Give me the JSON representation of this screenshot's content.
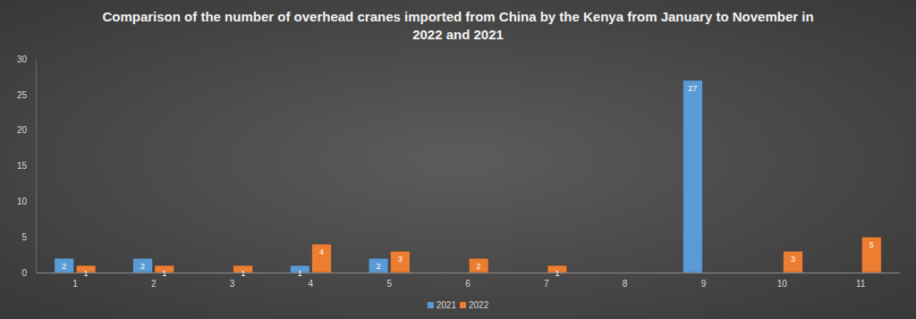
{
  "chart_data": {
    "type": "bar",
    "title": "Comparison of the number of overhead cranes imported from China by the Kenya from January to November in 2022 and 2021",
    "categories": [
      "1",
      "2",
      "3",
      "4",
      "5",
      "6",
      "7",
      "8",
      "9",
      "10",
      "11"
    ],
    "series": [
      {
        "name": "2021",
        "color": "#5b9bd5",
        "values": [
          2,
          2,
          null,
          1,
          2,
          null,
          null,
          null,
          27,
          null,
          null
        ]
      },
      {
        "name": "2022",
        "color": "#ed7d31",
        "values": [
          1,
          1,
          1,
          4,
          3,
          2,
          1,
          null,
          null,
          3,
          5
        ]
      }
    ],
    "ylim": [
      0,
      30
    ],
    "yticks": [
      0,
      5,
      10,
      15,
      20,
      25,
      30
    ],
    "grid": false,
    "legend": "bottom",
    "data_labels": true
  }
}
